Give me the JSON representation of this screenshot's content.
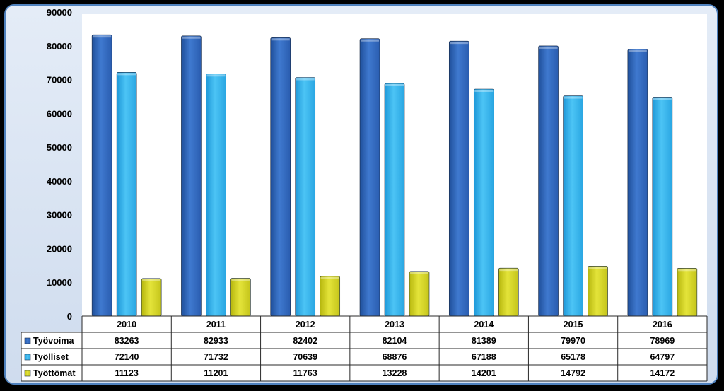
{
  "chart_data": {
    "type": "bar",
    "title": "",
    "xlabel": "",
    "ylabel": "",
    "ylim": [
      0,
      90000
    ],
    "y_ticks": [
      "0",
      "10000",
      "20000",
      "30000",
      "40000",
      "50000",
      "60000",
      "70000",
      "80000",
      "90000"
    ],
    "grid": false,
    "legend": "data-table",
    "categories": [
      "2010",
      "2011",
      "2012",
      "2013",
      "2014",
      "2015",
      "2016"
    ],
    "series": [
      {
        "name": "Työvoima",
        "color": "#3a70c4",
        "values": [
          83263,
          82933,
          82402,
          82104,
          81389,
          79970,
          78969
        ]
      },
      {
        "name": "Työlliset",
        "color": "#33b3ec",
        "values": [
          72140,
          71732,
          70639,
          68876,
          67188,
          65178,
          64797
        ]
      },
      {
        "name": "Työttömät",
        "color": "#d4d424",
        "values": [
          11123,
          11201,
          11763,
          13228,
          14201,
          14792,
          14172
        ]
      }
    ]
  }
}
